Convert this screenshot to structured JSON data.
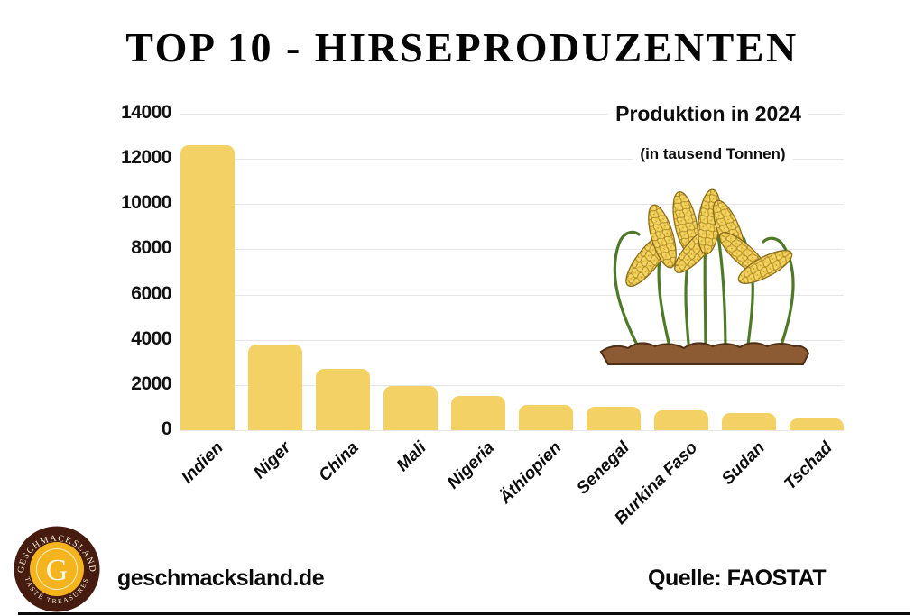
{
  "title": "TOP 10 - HIRSEPRODUZENTEN",
  "chart_data": {
    "type": "bar",
    "title": "TOP 10 - HIRSEPRODUZENTEN",
    "annotation_title": "Produktion in 2024",
    "annotation_subtitle": "(in tausend Tonnen)",
    "unit": "tausend Tonnen",
    "categories": [
      "Indien",
      "Niger",
      "China",
      "Mali",
      "Nigeria",
      "Äthiopien",
      "Senegal",
      "Burkina Faso",
      "Sudan",
      "Tschad"
    ],
    "values": [
      12600,
      3800,
      2700,
      1950,
      1500,
      1100,
      1050,
      860,
      760,
      520
    ],
    "ylim": [
      0,
      14000
    ],
    "yticks": [
      0,
      2000,
      4000,
      6000,
      8000,
      10000,
      12000,
      14000
    ],
    "grid": true,
    "legend": false,
    "bar_color": "#F4D164",
    "gridline_color": "#E6E6E6",
    "label_rotation_deg": -45
  },
  "footer": {
    "website": "geschmacksland.de",
    "source": "Quelle: FAOSTAT"
  },
  "logo": {
    "arc_top": "GESCHMACKSLAND",
    "arc_bottom": "TASTE TREASURES",
    "monogram": "G",
    "outer_color": "#461B10",
    "disc_color": "#F3B41D",
    "text_color": "#F4ECD9"
  },
  "illustration": {
    "name": "millet-plants",
    "stem_color": "#4E7A28",
    "grain_fill": "#F5D566",
    "grain_outline": "#9C7A1D",
    "soil_color": "#8C5B33",
    "soil_outline": "#4F3015"
  }
}
